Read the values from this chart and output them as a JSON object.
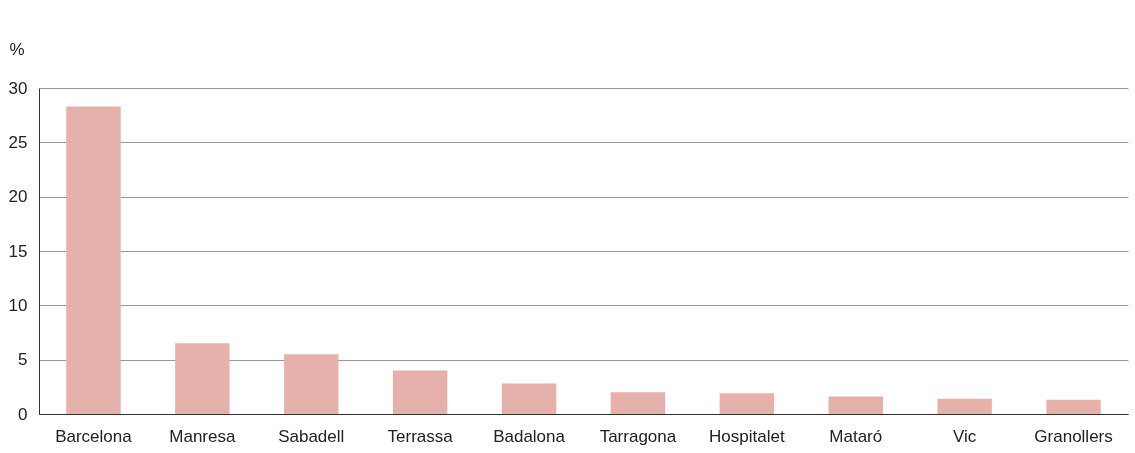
{
  "chart_data": {
    "type": "bar",
    "ylabel": "%",
    "categories": [
      "Barcelona",
      "Manresa",
      "Sabadell",
      "Terrassa",
      "Badalona",
      "Tarragona",
      "Hospitalet",
      "Mataró",
      "Vic",
      "Granollers"
    ],
    "values": [
      28.3,
      6.5,
      5.5,
      4.0,
      2.8,
      2.0,
      1.9,
      1.6,
      1.4,
      1.3
    ],
    "color": "#e6b1ab",
    "ylim": [
      0,
      30
    ],
    "yticks": [
      0,
      5,
      10,
      15,
      20,
      25,
      30
    ],
    "grid": "y"
  }
}
